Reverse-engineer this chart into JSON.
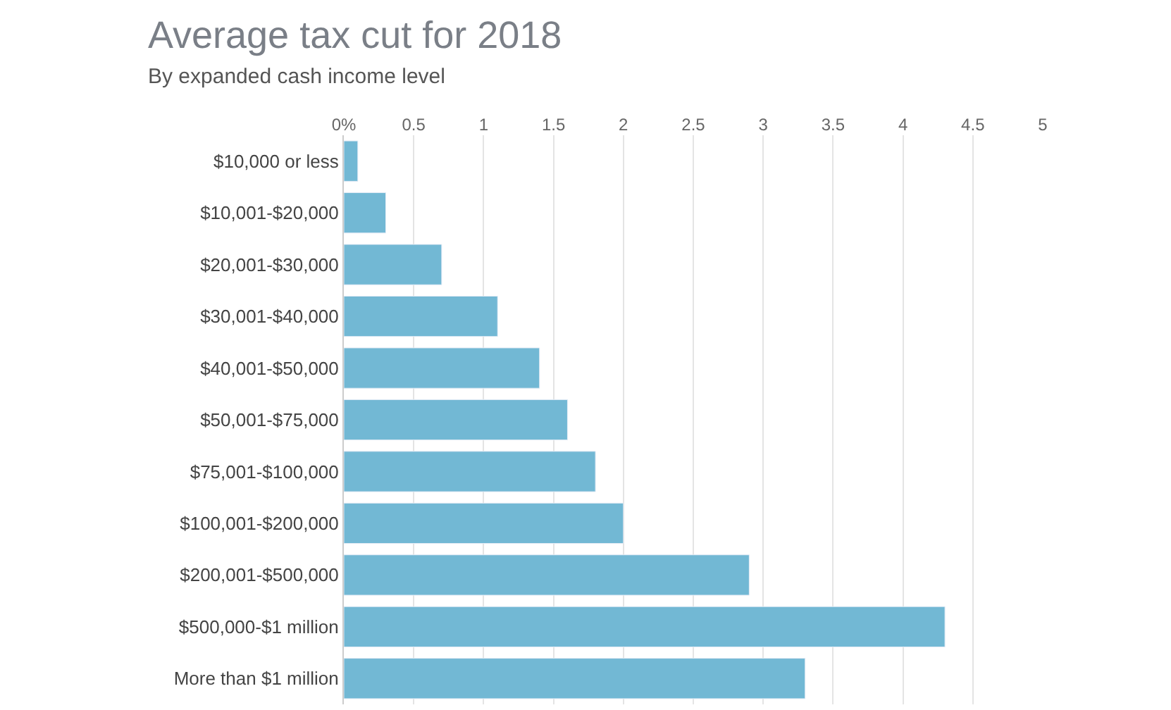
{
  "chart_data": {
    "type": "bar",
    "orientation": "horizontal",
    "title": "Average tax cut for 2018",
    "subtitle": "By expanded cash income level",
    "categories": [
      "$10,000 or less",
      "$10,001-$20,000",
      "$20,001-$30,000",
      "$30,001-$40,000",
      "$40,001-$50,000",
      "$50,001-$75,000",
      "$75,001-$100,000",
      "$100,001-$200,000",
      "$200,001-$500,000",
      "$500,000-$1 million",
      "More than $1 million"
    ],
    "values": [
      0.1,
      0.3,
      0.7,
      1.1,
      1.4,
      1.6,
      1.8,
      2.0,
      2.9,
      4.3,
      3.3
    ],
    "color": "#72b8d4",
    "xlim": [
      0,
      5
    ],
    "xticks": [
      {
        "value": 0,
        "label": "0%"
      },
      0.5,
      1,
      1.5,
      2,
      2.5,
      3,
      3.5,
      4,
      4.5,
      5
    ],
    "grid": "x"
  }
}
